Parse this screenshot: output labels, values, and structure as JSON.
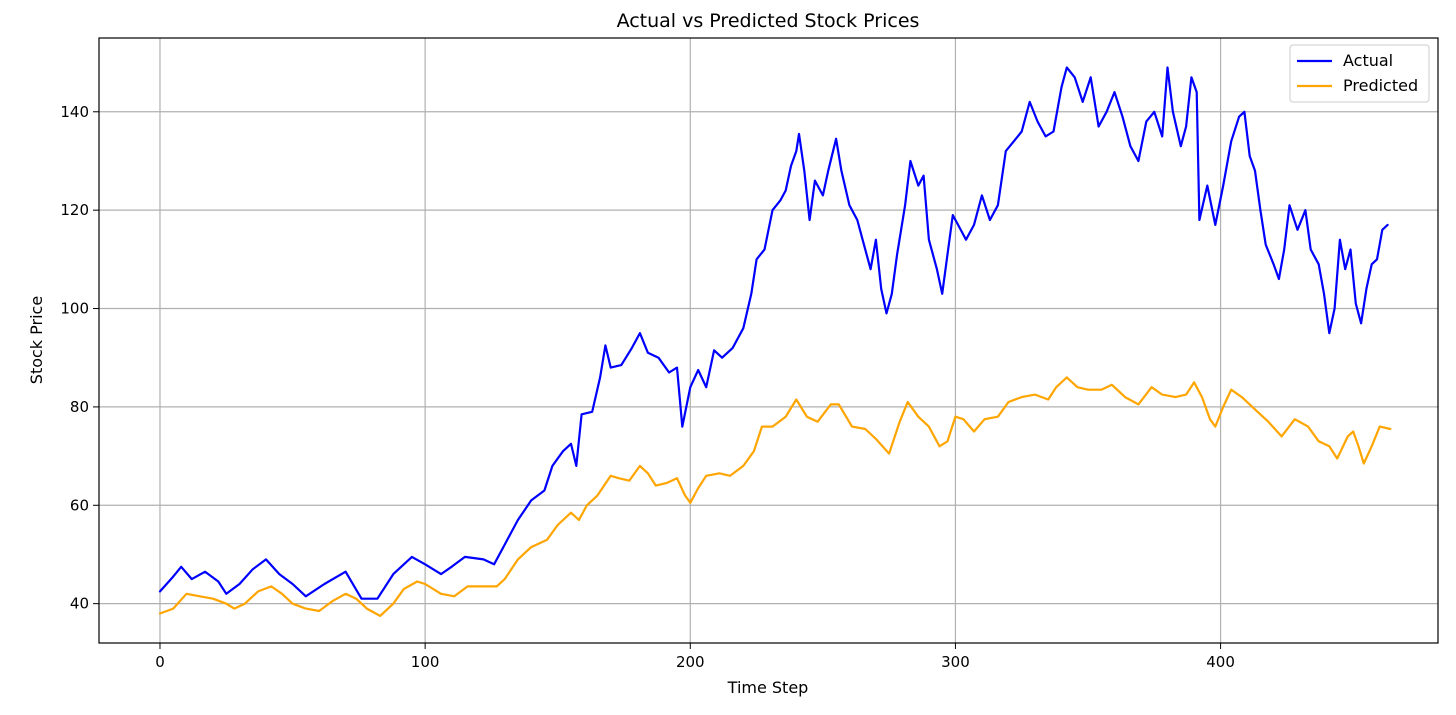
{
  "chart_data": {
    "type": "line",
    "title": "Actual vs Predicted Stock Prices",
    "xlabel": "Time Step",
    "ylabel": "Stock Price",
    "xlim": [
      -23,
      482
    ],
    "ylim": [
      32,
      155
    ],
    "xticks": [
      0,
      100,
      200,
      300,
      400
    ],
    "yticks": [
      40,
      60,
      80,
      100,
      120,
      140
    ],
    "grid": true,
    "legend_position": "top-right",
    "series": [
      {
        "name": "Actual",
        "color": "#0000ff",
        "points": [
          [
            0,
            42.5
          ],
          [
            5,
            45.5
          ],
          [
            8,
            47.5
          ],
          [
            12,
            45
          ],
          [
            17,
            46.5
          ],
          [
            22,
            44.5
          ],
          [
            25,
            42
          ],
          [
            30,
            44
          ],
          [
            35,
            47
          ],
          [
            40,
            49
          ],
          [
            45,
            46
          ],
          [
            50,
            44
          ],
          [
            55,
            41.5
          ],
          [
            62,
            44
          ],
          [
            70,
            46.5
          ],
          [
            76,
            41
          ],
          [
            82,
            41
          ],
          [
            88,
            46
          ],
          [
            95,
            49.5
          ],
          [
            100,
            48
          ],
          [
            106,
            46
          ],
          [
            110,
            47.5
          ],
          [
            115,
            49.5
          ],
          [
            122,
            49
          ],
          [
            126,
            48
          ],
          [
            130,
            52
          ],
          [
            135,
            57
          ],
          [
            140,
            61
          ],
          [
            145,
            63
          ],
          [
            148,
            68
          ],
          [
            152,
            71
          ],
          [
            155,
            72.5
          ],
          [
            157,
            68
          ],
          [
            159,
            78.5
          ],
          [
            163,
            79
          ],
          [
            166,
            86
          ],
          [
            168,
            92.5
          ],
          [
            170,
            88
          ],
          [
            174,
            88.5
          ],
          [
            178,
            92
          ],
          [
            181,
            95
          ],
          [
            184,
            91
          ],
          [
            188,
            90
          ],
          [
            192,
            87
          ],
          [
            195,
            88
          ],
          [
            197,
            76
          ],
          [
            200,
            84
          ],
          [
            203,
            87.5
          ],
          [
            206,
            84
          ],
          [
            209,
            91.5
          ],
          [
            212,
            90
          ],
          [
            216,
            92
          ],
          [
            220,
            96
          ],
          [
            223,
            103
          ],
          [
            225,
            110
          ],
          [
            228,
            112
          ],
          [
            231,
            120
          ],
          [
            234,
            122
          ],
          [
            236,
            124
          ],
          [
            238,
            129
          ],
          [
            240,
            132
          ],
          [
            241,
            135.5
          ],
          [
            243,
            128
          ],
          [
            245,
            118
          ],
          [
            247,
            126
          ],
          [
            250,
            123
          ],
          [
            252,
            128
          ],
          [
            255,
            134.5
          ],
          [
            257,
            128
          ],
          [
            260,
            121
          ],
          [
            263,
            118
          ],
          [
            265,
            114
          ],
          [
            268,
            108
          ],
          [
            270,
            114
          ],
          [
            272,
            104
          ],
          [
            274,
            99
          ],
          [
            276,
            103
          ],
          [
            278,
            111
          ],
          [
            281,
            121
          ],
          [
            283,
            130
          ],
          [
            286,
            125
          ],
          [
            288,
            127
          ],
          [
            290,
            114
          ],
          [
            293,
            108
          ],
          [
            295,
            103
          ],
          [
            297,
            111
          ],
          [
            299,
            119
          ],
          [
            301,
            117
          ],
          [
            304,
            114
          ],
          [
            307,
            117
          ],
          [
            310,
            123
          ],
          [
            313,
            118
          ],
          [
            316,
            121
          ],
          [
            319,
            132
          ],
          [
            322,
            134
          ],
          [
            325,
            136
          ],
          [
            328,
            142
          ],
          [
            331,
            138
          ],
          [
            334,
            135
          ],
          [
            337,
            136
          ],
          [
            340,
            145
          ],
          [
            342,
            149
          ],
          [
            345,
            147
          ],
          [
            348,
            142
          ],
          [
            351,
            147
          ],
          [
            354,
            137
          ],
          [
            357,
            140
          ],
          [
            360,
            144
          ],
          [
            363,
            139
          ],
          [
            366,
            133
          ],
          [
            369,
            130
          ],
          [
            372,
            138
          ],
          [
            375,
            140
          ],
          [
            378,
            135
          ],
          [
            380,
            149
          ],
          [
            382,
            140
          ],
          [
            385,
            133
          ],
          [
            387,
            137
          ],
          [
            389,
            147
          ],
          [
            391,
            144
          ],
          [
            392,
            118
          ],
          [
            395,
            125
          ],
          [
            398,
            117
          ],
          [
            401,
            125
          ],
          [
            404,
            134
          ],
          [
            407,
            139
          ],
          [
            409,
            140
          ],
          [
            411,
            131
          ],
          [
            413,
            128
          ],
          [
            415,
            120
          ],
          [
            417,
            113
          ],
          [
            420,
            109
          ],
          [
            422,
            106
          ],
          [
            424,
            112
          ],
          [
            426,
            121
          ],
          [
            429,
            116
          ],
          [
            432,
            120
          ],
          [
            434,
            112
          ],
          [
            437,
            109
          ],
          [
            439,
            103
          ],
          [
            441,
            95
          ],
          [
            443,
            100
          ],
          [
            445,
            114
          ],
          [
            447,
            108
          ],
          [
            449,
            112
          ],
          [
            451,
            101
          ],
          [
            453,
            97
          ],
          [
            455,
            104
          ],
          [
            457,
            109
          ],
          [
            459,
            110
          ],
          [
            461,
            116
          ],
          [
            463,
            117
          ]
        ]
      },
      {
        "name": "Predicted",
        "color": "#ffa500",
        "points": [
          [
            0,
            38
          ],
          [
            5,
            39
          ],
          [
            10,
            42
          ],
          [
            15,
            41.5
          ],
          [
            20,
            41
          ],
          [
            25,
            40
          ],
          [
            28,
            39
          ],
          [
            32,
            40
          ],
          [
            37,
            42.5
          ],
          [
            42,
            43.5
          ],
          [
            46,
            42
          ],
          [
            50,
            40
          ],
          [
            55,
            39
          ],
          [
            60,
            38.5
          ],
          [
            65,
            40.5
          ],
          [
            70,
            42
          ],
          [
            74,
            41
          ],
          [
            78,
            39
          ],
          [
            83,
            37.5
          ],
          [
            88,
            40
          ],
          [
            92,
            43
          ],
          [
            97,
            44.5
          ],
          [
            100,
            44
          ],
          [
            106,
            42
          ],
          [
            111,
            41.5
          ],
          [
            116,
            43.5
          ],
          [
            122,
            43.5
          ],
          [
            127,
            43.5
          ],
          [
            130,
            45
          ],
          [
            135,
            49
          ],
          [
            140,
            51.5
          ],
          [
            146,
            53
          ],
          [
            150,
            56
          ],
          [
            155,
            58.5
          ],
          [
            158,
            57
          ],
          [
            161,
            60
          ],
          [
            165,
            62
          ],
          [
            170,
            66
          ],
          [
            173,
            65.5
          ],
          [
            177,
            65
          ],
          [
            181,
            68
          ],
          [
            184,
            66.5
          ],
          [
            187,
            64
          ],
          [
            191,
            64.5
          ],
          [
            195,
            65.5
          ],
          [
            198,
            62
          ],
          [
            200,
            60.5
          ],
          [
            203,
            63.5
          ],
          [
            206,
            66
          ],
          [
            211,
            66.5
          ],
          [
            215,
            66
          ],
          [
            220,
            68
          ],
          [
            224,
            71
          ],
          [
            227,
            76
          ],
          [
            231,
            76
          ],
          [
            236,
            78
          ],
          [
            240,
            81.5
          ],
          [
            244,
            78
          ],
          [
            248,
            77
          ],
          [
            253,
            80.5
          ],
          [
            256,
            80.5
          ],
          [
            261,
            76
          ],
          [
            266,
            75.5
          ],
          [
            270,
            73.5
          ],
          [
            275,
            70.5
          ],
          [
            279,
            77
          ],
          [
            282,
            81
          ],
          [
            286,
            78
          ],
          [
            290,
            76
          ],
          [
            294,
            72
          ],
          [
            297,
            73
          ],
          [
            300,
            78
          ],
          [
            303,
            77.5
          ],
          [
            307,
            75
          ],
          [
            311,
            77.5
          ],
          [
            316,
            78
          ],
          [
            320,
            81
          ],
          [
            325,
            82
          ],
          [
            330,
            82.5
          ],
          [
            335,
            81.5
          ],
          [
            338,
            84
          ],
          [
            342,
            86
          ],
          [
            346,
            84
          ],
          [
            350,
            83.5
          ],
          [
            355,
            83.5
          ],
          [
            359,
            84.5
          ],
          [
            364,
            82
          ],
          [
            369,
            80.5
          ],
          [
            374,
            84
          ],
          [
            378,
            82.5
          ],
          [
            383,
            82
          ],
          [
            387,
            82.5
          ],
          [
            390,
            85
          ],
          [
            393,
            82
          ],
          [
            396,
            77.5
          ],
          [
            398,
            76
          ],
          [
            401,
            80
          ],
          [
            404,
            83.5
          ],
          [
            408,
            82
          ],
          [
            413,
            79.5
          ],
          [
            418,
            77
          ],
          [
            423,
            74
          ],
          [
            428,
            77.5
          ],
          [
            433,
            76
          ],
          [
            437,
            73
          ],
          [
            441,
            72
          ],
          [
            444,
            69.5
          ],
          [
            448,
            74
          ],
          [
            450,
            75
          ],
          [
            452,
            72
          ],
          [
            454,
            68.5
          ],
          [
            457,
            72
          ],
          [
            460,
            76
          ],
          [
            464,
            75.5
          ]
        ]
      }
    ]
  }
}
